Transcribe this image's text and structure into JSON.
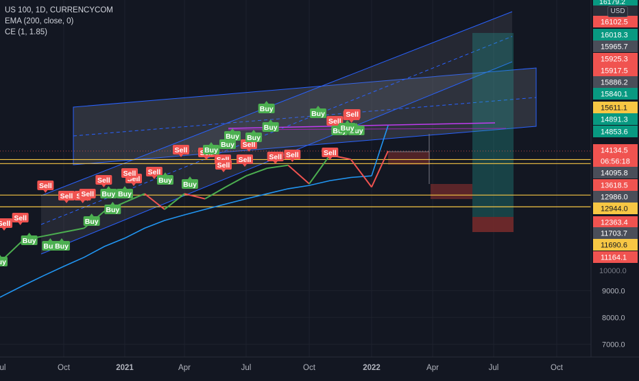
{
  "header": {
    "symbol_line": "US 100, 1D, CURRENCYCOM",
    "ema_line": "EMA (200, close, 0)",
    "ce_line": "CE (1, 1.85)",
    "currency": "USD"
  },
  "colors": {
    "background": "#131722",
    "ema": "#2196f3",
    "channel": "#2962ff",
    "horizontal": "#f7c744",
    "magenta": "#c03cf0",
    "sell": "#f05350",
    "buy": "#4caf50",
    "target_zone": "#26a69a",
    "stop_zone": "#7a2c2c"
  },
  "price_axis": {
    "top_partial": "16179.2",
    "ticks": [
      "9000.0",
      "8000.0",
      "7000.0"
    ],
    "partial_tick": "10000.0",
    "labels": [
      {
        "text": "16102.5",
        "color": "#f05350"
      },
      {
        "text": "16018.3",
        "color": "#089981"
      },
      {
        "text": "15965.7",
        "color": "#4a4e59"
      },
      {
        "text": "15925.3",
        "color": "#f05350"
      },
      {
        "text": "15917.5",
        "color": "#f05350"
      },
      {
        "text": "15886.2",
        "color": "#4a4e59"
      },
      {
        "text": "15840.1",
        "color": "#089981"
      },
      {
        "text": "15611.1",
        "color": "#f7c744"
      },
      {
        "text": "14891.3",
        "color": "#089981"
      },
      {
        "text": "14853.6",
        "color": "#089981"
      },
      {
        "text": "14134.5",
        "color": "#f05350"
      },
      {
        "text": "06:56:18",
        "color": "#f05350"
      },
      {
        "text": "14095.8",
        "color": "#4a4e59"
      },
      {
        "text": "13618.5",
        "color": "#f05350"
      },
      {
        "text": "12986.0",
        "color": "#4a4e59"
      },
      {
        "text": "12944.0",
        "color": "#f7c744"
      },
      {
        "text": "12363.4",
        "color": "#f05350"
      },
      {
        "text": "11703.7",
        "color": "#4a4e59"
      },
      {
        "text": "11690.6",
        "color": "#f7c744"
      },
      {
        "text": "11164.1",
        "color": "#f05350"
      }
    ]
  },
  "time_axis": {
    "labels": [
      "ul",
      "Oct",
      "2021",
      "Apr",
      "Jul",
      "Oct",
      "2022",
      "Apr",
      "Jul",
      "Oct"
    ]
  },
  "chart_data": {
    "type": "line",
    "title": "US 100, 1D, CURRENCYCOM",
    "y_scale": "log",
    "ylim": [
      6600,
      17700
    ],
    "x": [
      "2020-07",
      "2020-08",
      "2020-09",
      "2020-10",
      "2020-11",
      "2020-12",
      "2021-01",
      "2021-02",
      "2021-03",
      "2021-04",
      "2021-05",
      "2021-06",
      "2021-07",
      "2021-08",
      "2021-09",
      "2021-10",
      "2021-11",
      "2021-12",
      "2022-01"
    ],
    "series": [
      {
        "name": "US 100",
        "values": [
          10300,
          11200,
          11400,
          11600,
          11800,
          12700,
          13200,
          13700,
          12800,
          13700,
          13400,
          14100,
          14800,
          15300,
          15500,
          14300,
          16200,
          15900,
          14100
        ]
      },
      {
        "name": "EMA",
        "values": [
          8800,
          9200,
          9600,
          10000,
          10400,
          10900,
          11300,
          11800,
          12200,
          12500,
          12800,
          13100,
          13400,
          13700,
          14000,
          14200,
          14500,
          14700,
          14800
        ]
      }
    ],
    "horizontal_levels": [
      15886.2,
      15611.1,
      13618.5,
      12944.0
    ],
    "signals": [
      {
        "type": "Buy",
        "date": "2020-07"
      },
      {
        "type": "Sell",
        "date": "2020-07"
      },
      {
        "type": "Buy",
        "date": "2020-08"
      },
      {
        "type": "Sell",
        "date": "2020-08"
      },
      {
        "type": "Sell",
        "date": "2020-09"
      },
      {
        "type": "Buy",
        "date": "2020-09"
      },
      {
        "type": "Buy",
        "date": "2020-10"
      },
      {
        "type": "Sell",
        "date": "2020-10"
      },
      {
        "type": "Buy",
        "date": "2020-11"
      },
      {
        "type": "Sell",
        "date": "2020-11"
      },
      {
        "type": "Sell",
        "date": "2020-11"
      },
      {
        "type": "Buy",
        "date": "2020-12"
      },
      {
        "type": "Sell",
        "date": "2020-12"
      },
      {
        "type": "Buy",
        "date": "2020-12"
      },
      {
        "type": "Sell",
        "date": "2021-01"
      },
      {
        "type": "Buy",
        "date": "2021-01"
      },
      {
        "type": "Sell",
        "date": "2021-01"
      },
      {
        "type": "Sell",
        "date": "2021-02"
      },
      {
        "type": "Buy",
        "date": "2021-03"
      },
      {
        "type": "Buy",
        "date": "2021-04"
      },
      {
        "type": "Sell",
        "date": "2021-04"
      },
      {
        "type": "Sell",
        "date": "2021-05"
      },
      {
        "type": "Buy",
        "date": "2021-05"
      },
      {
        "type": "Sell",
        "date": "2021-06"
      },
      {
        "type": "Buy",
        "date": "2021-06"
      },
      {
        "type": "Buy",
        "date": "2021-06"
      },
      {
        "type": "Sell",
        "date": "2021-06"
      },
      {
        "type": "Sell",
        "date": "2021-07"
      },
      {
        "type": "Buy",
        "date": "2021-07"
      },
      {
        "type": "Sell",
        "date": "2021-07"
      },
      {
        "type": "Buy",
        "date": "2021-08"
      },
      {
        "type": "Sell",
        "date": "2021-08"
      },
      {
        "type": "Buy",
        "date": "2021-08"
      },
      {
        "type": "Sell",
        "date": "2021-09"
      },
      {
        "type": "Buy",
        "date": "2021-10"
      },
      {
        "type": "Sell",
        "date": "2021-11"
      },
      {
        "type": "Sell",
        "date": "2021-11"
      },
      {
        "type": "Buy",
        "date": "2021-11"
      },
      {
        "type": "Sell",
        "date": "2021-12"
      },
      {
        "type": "Buy",
        "date": "2021-12"
      },
      {
        "type": "Buy",
        "date": "2021-12"
      },
      {
        "type": "Sell",
        "date": "2021-12"
      }
    ]
  }
}
